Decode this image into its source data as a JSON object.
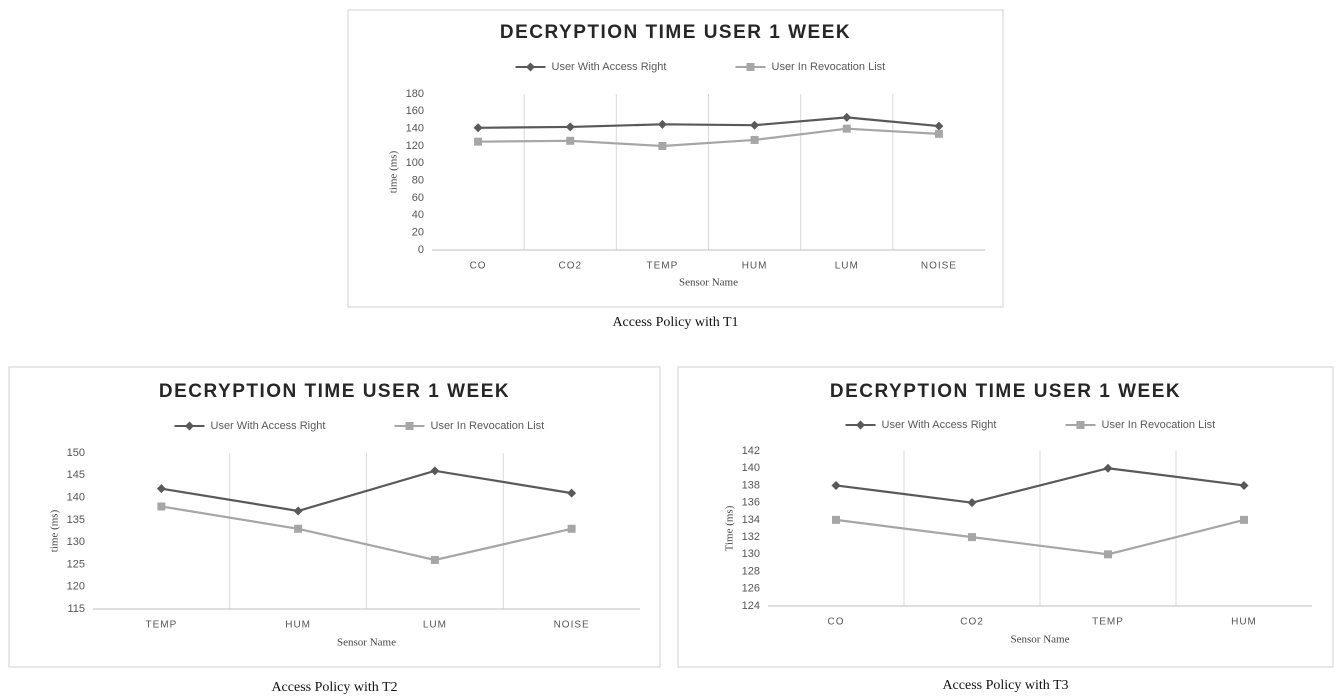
{
  "chart_data": [
    {
      "type": "line",
      "title": "DECRYPTION TIME USER 1 WEEK",
      "x_label": "Sensor Name",
      "y_label": "time (ms)",
      "caption": "Access Policy with T1",
      "categories": [
        "CO",
        "CO2",
        "TEMP",
        "HUM",
        "LUM",
        "NOISE"
      ],
      "series": [
        {
          "name": "User With Access Right",
          "color": "#595959",
          "marker": "diamond",
          "values": [
            141,
            142,
            145,
            144,
            153,
            143
          ]
        },
        {
          "name": "User In Revocation List",
          "color": "#a6a6a6",
          "marker": "square",
          "values": [
            125,
            126,
            120,
            127,
            140,
            134
          ]
        }
      ],
      "ylim": [
        0,
        180
      ],
      "yticks": [
        0,
        20,
        40,
        60,
        80,
        100,
        120,
        140,
        160,
        180
      ],
      "legend": "top"
    },
    {
      "type": "line",
      "title": "DECRYPTION TIME USER 1 WEEK",
      "x_label": "Sensor Name",
      "y_label": "time (ms)",
      "caption": "Access Policy with T2",
      "categories": [
        "TEMP",
        "HUM",
        "LUM",
        "NOISE"
      ],
      "series": [
        {
          "name": "User With Access Right",
          "color": "#595959",
          "marker": "diamond",
          "values": [
            142,
            137,
            146,
            141
          ]
        },
        {
          "name": "User In Revocation List",
          "color": "#a6a6a6",
          "marker": "square",
          "values": [
            138,
            133,
            126,
            133
          ]
        }
      ],
      "ylim": [
        115,
        150
      ],
      "yticks": [
        115,
        120,
        125,
        130,
        135,
        140,
        145,
        150
      ],
      "legend": "top"
    },
    {
      "type": "line",
      "title": "DECRYPTION TIME USER 1 WEEK",
      "x_label": "Sensor Name",
      "y_label": "Time (ms)",
      "caption": "Access Policy with T3",
      "categories": [
        "CO",
        "CO2",
        "TEMP",
        "HUM"
      ],
      "series": [
        {
          "name": "User With Access Right",
          "color": "#595959",
          "marker": "diamond",
          "values": [
            138,
            136,
            140,
            138
          ]
        },
        {
          "name": "User In Revocation List",
          "color": "#a6a6a6",
          "marker": "square",
          "values": [
            134,
            132,
            130,
            134
          ]
        }
      ],
      "ylim": [
        124,
        142
      ],
      "yticks": [
        124,
        126,
        128,
        130,
        132,
        134,
        136,
        138,
        140,
        142
      ],
      "legend": "top"
    }
  ]
}
